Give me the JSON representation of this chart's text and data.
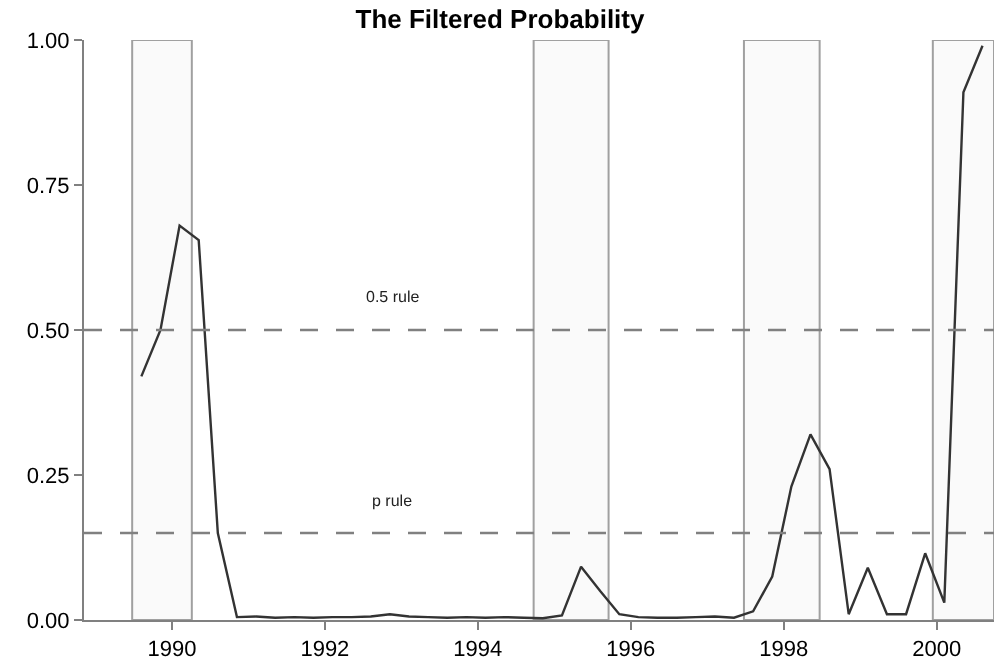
{
  "chart_data": {
    "type": "line",
    "title": "The Filtered Probability",
    "x": [
      1989.6,
      1989.85,
      1990.1,
      1990.35,
      1990.6,
      1990.85,
      1991.1,
      1991.35,
      1991.6,
      1991.85,
      1992.1,
      1992.35,
      1992.6,
      1992.85,
      1993.1,
      1993.35,
      1993.6,
      1993.85,
      1994.1,
      1994.35,
      1994.6,
      1994.85,
      1995.1,
      1995.35,
      1995.6,
      1995.85,
      1996.1,
      1996.35,
      1996.6,
      1996.85,
      1997.1,
      1997.35,
      1997.6,
      1997.85,
      1998.1,
      1998.35,
      1998.6,
      1998.85,
      1999.1,
      1999.35,
      1999.6,
      1999.85,
      2000.1,
      2000.35,
      2000.6
    ],
    "series": [
      {
        "color": "#333333",
        "values": [
          0.42,
          0.5,
          0.68,
          0.655,
          0.15,
          0.005,
          0.006,
          0.004,
          0.005,
          0.004,
          0.005,
          0.005,
          0.006,
          0.01,
          0.006,
          0.005,
          0.004,
          0.005,
          0.004,
          0.005,
          0.004,
          0.003,
          0.008,
          0.092,
          0.05,
          0.01,
          0.005,
          0.004,
          0.004,
          0.005,
          0.006,
          0.004,
          0.015,
          0.075,
          0.23,
          0.32,
          0.26,
          0.01,
          0.09,
          0.01,
          0.01,
          0.115,
          0.03,
          0.91,
          0.99
        ]
      }
    ],
    "xlim": [
      1988.85,
      2000.75
    ],
    "xticks": [
      1990,
      1992,
      1994,
      1996,
      1998,
      2000
    ],
    "ylim": [
      0,
      1
    ],
    "yticks": [
      {
        "value": 0,
        "label": "0.00"
      },
      {
        "value": 0.25,
        "label": "0.25"
      },
      {
        "value": 0.5,
        "label": "0.50"
      },
      {
        "value": 0.75,
        "label": "0.75"
      },
      {
        "value": 1,
        "label": "1.00"
      }
    ],
    "ref_lines": [
      {
        "axis": "y",
        "value": 0.5,
        "label": "0.5 rule",
        "color": "#808080",
        "line_style": "dashed"
      },
      {
        "axis": "y",
        "value": 0.15,
        "label": "p rule",
        "color": "#808080",
        "line_style": "dashed"
      }
    ],
    "bands": [
      {
        "axis": "x",
        "from": 1989.48,
        "to": 1990.26,
        "color": "#fafafa"
      },
      {
        "axis": "x",
        "from": 1994.73,
        "to": 1995.71,
        "color": "#fafafa"
      },
      {
        "axis": "x",
        "from": 1997.48,
        "to": 1998.47,
        "color": "#fafafa"
      },
      {
        "axis": "x",
        "from": 1999.95,
        "to": 2000.75,
        "color": "#fafafa"
      }
    ],
    "marker": "none",
    "line_style": "solid"
  }
}
